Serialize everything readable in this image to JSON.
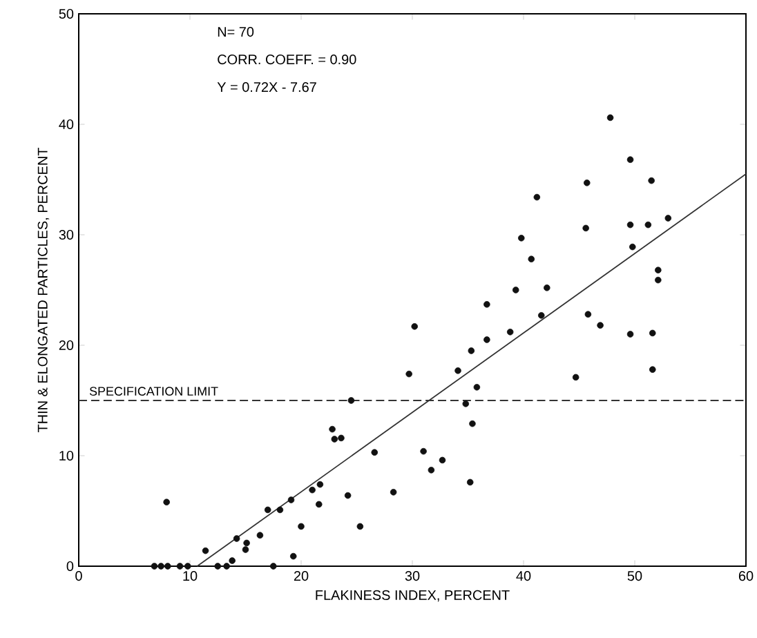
{
  "chart_data": {
    "type": "scatter",
    "xlabel": "FLAKINESS INDEX, PERCENT",
    "ylabel": "THIN & ELONGATED PARTICLES, PERCENT",
    "xlim": [
      0,
      60
    ],
    "ylim": [
      0,
      50
    ],
    "xticks": [
      0,
      10,
      20,
      30,
      40,
      50,
      60
    ],
    "yticks": [
      0,
      10,
      20,
      30,
      40,
      50
    ],
    "annotations": [
      "N= 70",
      "CORR. COEFF. = 0.90",
      "Y = 0.72X - 7.67"
    ],
    "ref_lines": [
      {
        "axis": "y",
        "value": 15,
        "label": "SPECIFICATION LIMIT",
        "color": "#333333",
        "line_style": "dashed"
      }
    ],
    "series": [
      {
        "marker": "circle",
        "color": "#111111",
        "x": [
          6.8,
          7.4,
          8.0,
          9.1,
          9.8,
          7.9,
          11.4,
          12.5,
          13.3,
          13.8,
          14.2,
          15.0,
          15.1,
          16.3,
          17.0,
          17.5,
          18.1,
          19.1,
          19.3,
          20.0,
          21.0,
          21.6,
          21.7,
          22.8,
          23.0,
          23.6,
          24.2,
          24.5,
          25.3,
          26.6,
          28.3,
          29.7,
          30.2,
          31.0,
          31.7,
          32.7,
          34.1,
          34.8,
          35.2,
          35.3,
          35.4,
          35.8,
          36.7,
          36.7,
          38.8,
          39.3,
          39.8,
          40.7,
          41.2,
          41.6,
          42.1,
          44.7,
          45.6,
          45.7,
          45.8,
          46.9,
          47.8,
          49.6,
          49.6,
          49.8,
          49.6,
          51.2,
          51.5,
          51.6,
          51.6,
          52.1,
          52.1,
          53.0
        ],
        "values": [
          0,
          0,
          0,
          0,
          0,
          5.8,
          1.4,
          0,
          0,
          0.5,
          2.5,
          1.5,
          2.1,
          2.8,
          5.1,
          0,
          5.1,
          6.0,
          0.9,
          3.6,
          6.9,
          5.6,
          7.4,
          12.4,
          11.5,
          11.6,
          6.4,
          15.0,
          3.6,
          10.3,
          6.7,
          17.4,
          21.7,
          10.4,
          8.7,
          9.6,
          17.7,
          14.7,
          7.6,
          19.5,
          12.9,
          16.2,
          20.5,
          23.7,
          21.2,
          25.0,
          29.7,
          27.8,
          33.4,
          22.7,
          25.2,
          17.1,
          30.6,
          34.7,
          22.8,
          21.8,
          40.6,
          36.8,
          30.9,
          28.9,
          21.0,
          30.9,
          34.9,
          21.1,
          17.8,
          26.8,
          25.9,
          31.5
        ]
      },
      {
        "type": "line",
        "color": "#333333",
        "marker": "none",
        "x": [
          10.65,
          60
        ],
        "values": [
          0,
          35.5
        ]
      }
    ]
  }
}
